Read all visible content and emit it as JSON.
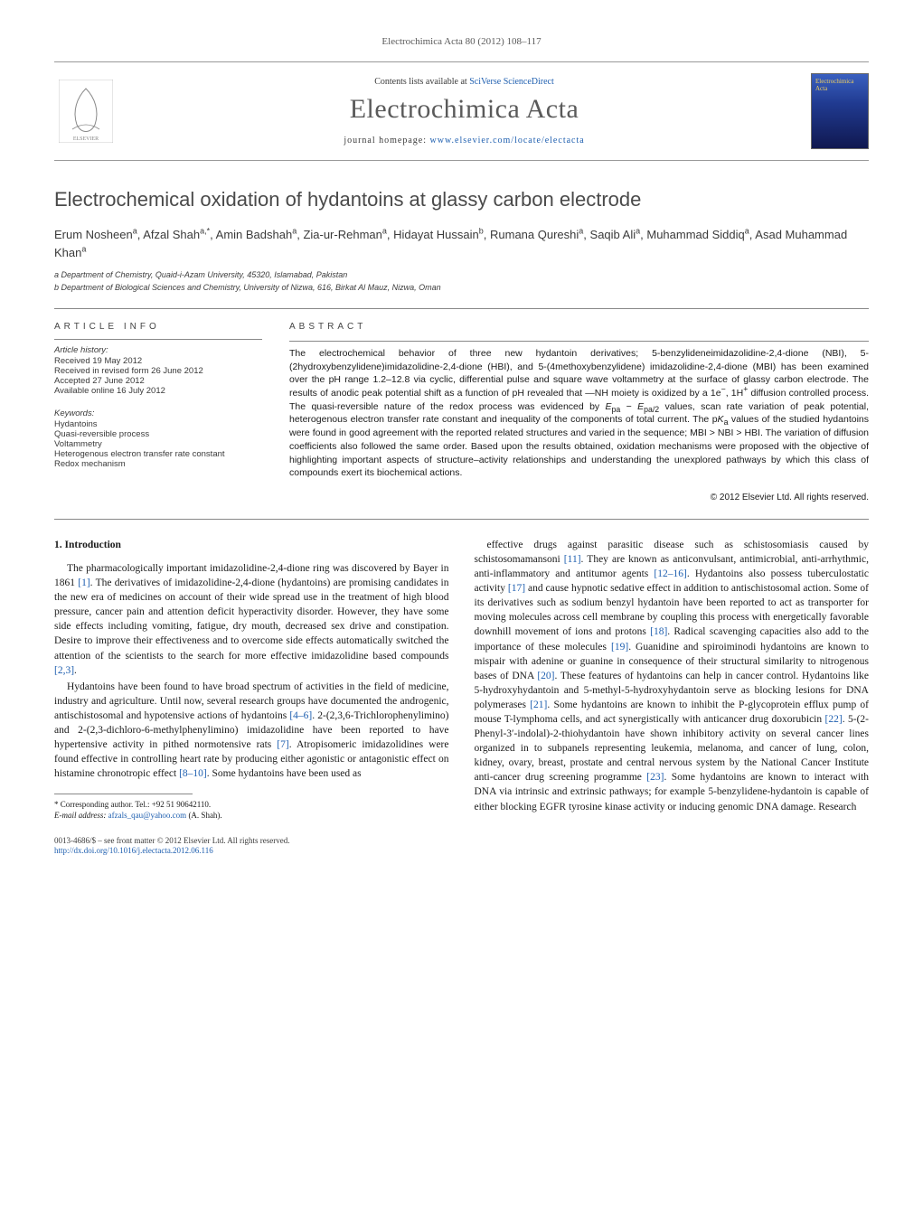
{
  "journal_ref": "Electrochimica Acta 80 (2012) 108–117",
  "header": {
    "contents_line_prefix": "Contents lists available at ",
    "contents_link": "SciVerse ScienceDirect",
    "journal_name": "Electrochimica Acta",
    "homepage_prefix": "journal homepage: ",
    "homepage_url": "www.elsevier.com/locate/electacta",
    "cover_text": "Electrochimica Acta"
  },
  "title": "Electrochemical oxidation of hydantoins at glassy carbon electrode",
  "authors_html": "Erum Nosheen<sup>a</sup>, Afzal Shah<sup>a,*</sup>, Amin Badshah<sup>a</sup>, Zia-ur-Rehman<sup>a</sup>, Hidayat Hussain<sup>b</sup>, Rumana Qureshi<sup>a</sup>, Saqib Ali<sup>a</sup>, Muhammad Siddiq<sup>a</sup>, Asad Muhammad Khan<sup>a</sup>",
  "affiliations": [
    "a Department of Chemistry, Quaid-i-Azam University, 45320, Islamabad, Pakistan",
    "b Department of Biological Sciences and Chemistry, University of Nizwa, 616, Birkat Al Mauz, Nizwa, Oman"
  ],
  "article_info": {
    "heading": "article info",
    "history_label": "Article history:",
    "history": [
      "Received 19 May 2012",
      "Received in revised form 26 June 2012",
      "Accepted 27 June 2012",
      "Available online 16 July 2012"
    ],
    "keywords_label": "Keywords:",
    "keywords": [
      "Hydantoins",
      "Quasi-reversible process",
      "Voltammetry",
      "Heterogenous electron transfer rate constant",
      "Redox mechanism"
    ]
  },
  "abstract": {
    "heading": "abstract",
    "text": "The electrochemical behavior of three new hydantoin derivatives; 5-benzylideneimidazolidine-2,4-dione (NBI), 5-(2hydroxybenzylidene)imidazolidine-2,4-dione (HBI), and 5-(4methoxybenzylidene) imidazolidine-2,4-dione (MBI) has been examined over the pH range 1.2–12.8 via cyclic, differential pulse and square wave voltammetry at the surface of glassy carbon electrode. The results of anodic peak potential shift as a function of pH revealed that —NH moiety is oxidized by a 1e⁻, 1H⁺ diffusion controlled process. The quasi-reversible nature of the redox process was evidenced by Epa − Epa/2 values, scan rate variation of peak potential, heterogenous electron transfer rate constant and inequality of the components of total current. The pKa values of the studied hydantoins were found in good agreement with the reported related structures and varied in the sequence; MBI > NBI > HBI. The variation of diffusion coefficients also followed the same order. Based upon the results obtained, oxidation mechanisms were proposed with the objective of highlighting important aspects of structure–activity relationships and understanding the unexplored pathways by which this class of compounds exert its biochemical actions.",
    "copyright": "© 2012 Elsevier Ltd. All rights reserved."
  },
  "section1": {
    "heading": "1. Introduction",
    "p1": "The pharmacologically important imidazolidine-2,4-dione ring was discovered by Bayer in 1861 [1]. The derivatives of imidazolidine-2,4-dione (hydantoins) are promising candidates in the new era of medicines on account of their wide spread use in the treatment of high blood pressure, cancer pain and attention deficit hyperactivity disorder. However, they have some side effects including vomiting, fatigue, dry mouth, decreased sex drive and constipation. Desire to improve their effectiveness and to overcome side effects automatically switched the attention of the scientists to the search for more effective imidazolidine based compounds [2,3].",
    "p2": "Hydantoins have been found to have broad spectrum of activities in the field of medicine, industry and agriculture. Until now, several research groups have documented the androgenic, antischistosomal and hypotensive actions of hydantoins [4–6]. 2-(2,3,6-Trichlorophenylimino) and 2-(2,3-dichloro-6-methylphenylimino) imidazolidine have been reported to have hypertensive activity in pithed normotensive rats [7]. Atropisomeric imidazolidines were found effective in controlling heart rate by producing either agonistic or antagonistic effect on histamine chronotropic effect [8–10]. Some hydantoins have been used as",
    "p3": "effective drugs against parasitic disease such as schistosomiasis caused by schistosomamansoni [11]. They are known as anticonvulsant, antimicrobial, anti-arrhythmic, anti-inflammatory and antitumor agents [12–16]. Hydantoins also possess tuberculostatic activity [17] and cause hypnotic sedative effect in addition to antischistosomal action. Some of its derivatives such as sodium benzyl hydantoin have been reported to act as transporter for moving molecules across cell membrane by coupling this process with energetically favorable downhill movement of ions and protons [18]. Radical scavenging capacities also add to the importance of these molecules [19]. Guanidine and spiroiminodi hydantoins are known to mispair with adenine or guanine in consequence of their structural similarity to nitrogenous bases of DNA [20]. These features of hydantoins can help in cancer control. Hydantoins like 5-hydroxyhydantoin and 5-methyl-5-hydroxyhydantoin serve as blocking lesions for DNA polymerases [21]. Some hydantoins are known to inhibit the P-glycoprotein efflux pump of mouse T-lymphoma cells, and act synergistically with anticancer drug doxorubicin [22]. 5-(2-Phenyl-3′-indolal)-2-thiohydantoin have shown inhibitory activity on several cancer lines organized in to subpanels representing leukemia, melanoma, and cancer of lung, colon, kidney, ovary, breast, prostate and central nervous system by the National Cancer Institute anti-cancer drug screening programme [23]. Some hydantoins are known to interact with DNA via intrinsic and extrinsic pathways; for example 5-benzylidene-hydantoin is capable of either blocking EGFR tyrosine kinase activity or inducing genomic DNA damage. Research"
  },
  "footnotes": {
    "corr": "* Corresponding author. Tel.: +92 51 90642110.",
    "email_label": "E-mail address: ",
    "email": "afzals_qau@yahoo.com",
    "email_tail": " (A. Shah)."
  },
  "footer": {
    "line1": "0013-4686/$ – see front matter © 2012 Elsevier Ltd. All rights reserved.",
    "doi_url": "http://dx.doi.org/10.1016/j.electacta.2012.06.116"
  },
  "colors": {
    "link": "#2060b0",
    "text": "#1a1a1a",
    "muted": "#5a5a5a",
    "rule": "#888888"
  }
}
